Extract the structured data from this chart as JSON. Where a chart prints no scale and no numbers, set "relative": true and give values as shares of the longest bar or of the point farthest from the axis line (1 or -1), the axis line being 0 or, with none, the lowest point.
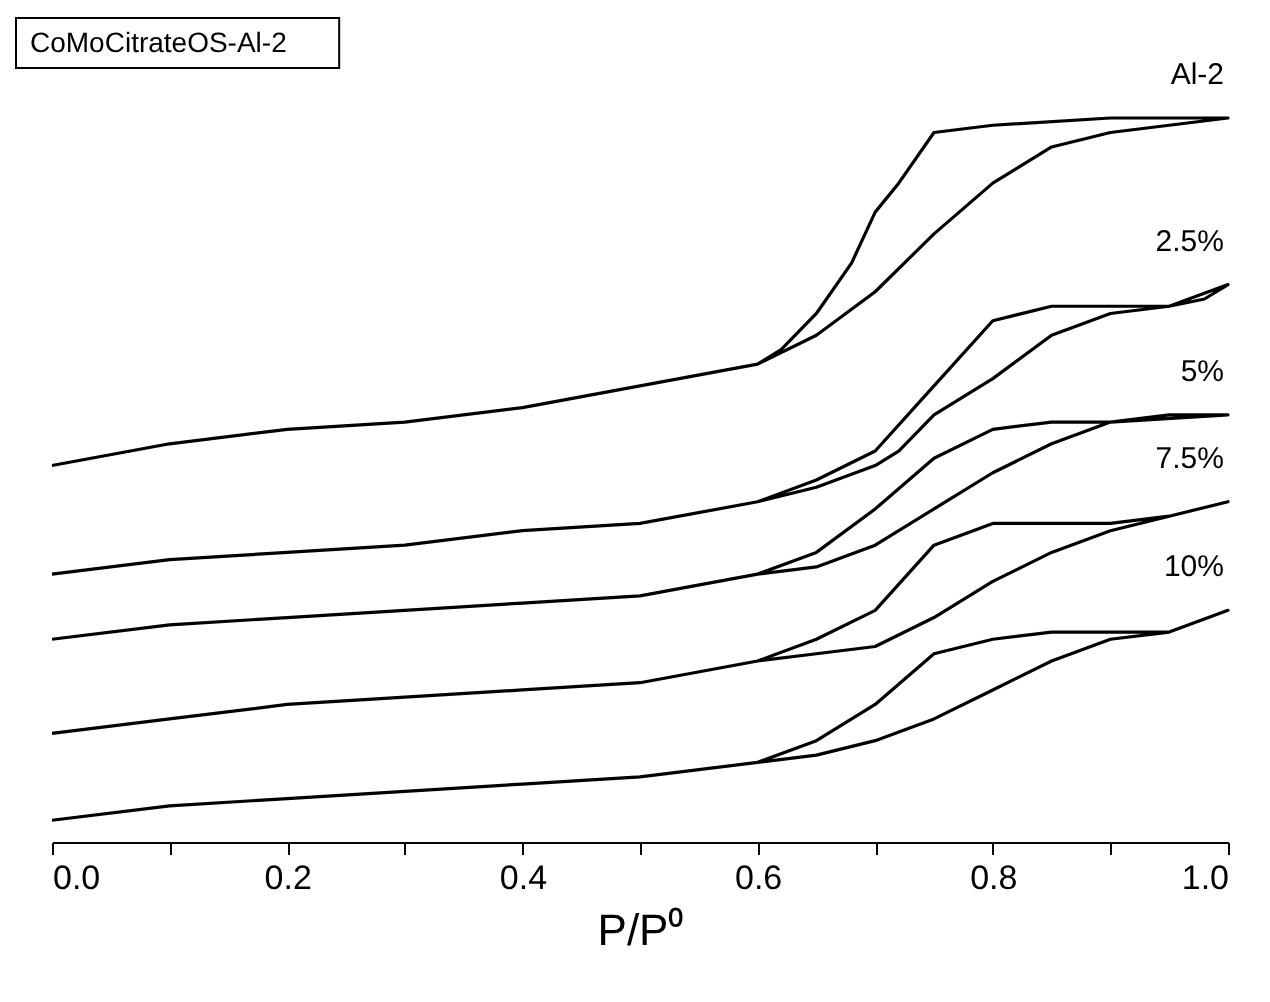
{
  "chart_data": {
    "type": "line",
    "title": "CoMoCitrateOS-Al-2",
    "xlabel": "P/P⁰",
    "relative": true,
    "legend": false,
    "grid": false,
    "xlim": [
      0,
      1
    ],
    "xticks": [
      {
        "value": 0,
        "label": "0.0"
      },
      {
        "value": 0.1,
        "label": null
      },
      {
        "value": 0.2,
        "label": "0.2"
      },
      {
        "value": 0.3,
        "label": null
      },
      {
        "value": 0.4,
        "label": "0.4"
      },
      {
        "value": 0.5,
        "label": null
      },
      {
        "value": 0.6,
        "label": "0.6"
      },
      {
        "value": 0.7,
        "label": null
      },
      {
        "value": 0.8,
        "label": "0.8"
      },
      {
        "value": 0.9,
        "label": null
      },
      {
        "value": 1,
        "label": "1.0"
      }
    ],
    "series": [
      {
        "name": "Al-2",
        "color": "#000000",
        "x": [
          0,
          0.1,
          0.2,
          0.3,
          0.4,
          0.5,
          0.6,
          0.65,
          0.7,
          0.75,
          0.8,
          0.85,
          0.9,
          0.95,
          1,
          0.9,
          0.8,
          0.75,
          0.72,
          0.7,
          0.68,
          0.65,
          0.62,
          0.6
        ],
        "values": [
          0.52,
          0.55,
          0.57,
          0.58,
          0.6,
          0.63,
          0.66,
          0.7,
          0.76,
          0.84,
          0.91,
          0.96,
          0.98,
          0.99,
          1,
          1,
          0.99,
          0.98,
          0.91,
          0.87,
          0.8,
          0.73,
          0.68,
          0.66
        ]
      },
      {
        "name": "2.5%",
        "color": "#000000",
        "x": [
          0,
          0.1,
          0.2,
          0.3,
          0.4,
          0.5,
          0.6,
          0.65,
          0.7,
          0.75,
          0.8,
          0.85,
          0.9,
          0.95,
          0.98,
          1,
          0.95,
          0.9,
          0.85,
          0.8,
          0.75,
          0.72,
          0.7,
          0.65,
          0.6
        ],
        "values": [
          0.37,
          0.39,
          0.4,
          0.41,
          0.43,
          0.44,
          0.47,
          0.5,
          0.54,
          0.63,
          0.72,
          0.74,
          0.74,
          0.74,
          0.75,
          0.77,
          0.74,
          0.73,
          0.7,
          0.64,
          0.59,
          0.54,
          0.52,
          0.49,
          0.47
        ]
      },
      {
        "name": "5%",
        "color": "#000000",
        "x": [
          0,
          0.1,
          0.2,
          0.3,
          0.4,
          0.5,
          0.6,
          0.65,
          0.7,
          0.75,
          0.8,
          0.85,
          0.9,
          1,
          0.95,
          0.9,
          0.85,
          0.8,
          0.75,
          0.7,
          0.65,
          0.6
        ],
        "values": [
          0.28,
          0.3,
          0.31,
          0.32,
          0.33,
          0.34,
          0.37,
          0.4,
          0.46,
          0.53,
          0.57,
          0.58,
          0.58,
          0.59,
          0.59,
          0.58,
          0.55,
          0.51,
          0.46,
          0.41,
          0.38,
          0.37
        ]
      },
      {
        "name": "7.5%",
        "color": "#000000",
        "x": [
          0,
          0.1,
          0.2,
          0.3,
          0.4,
          0.5,
          0.6,
          0.65,
          0.7,
          0.75,
          0.8,
          0.85,
          0.9,
          0.95,
          1,
          0.95,
          0.9,
          0.85,
          0.8,
          0.75,
          0.7,
          0.65,
          0.6
        ],
        "values": [
          0.15,
          0.17,
          0.19,
          0.2,
          0.21,
          0.22,
          0.25,
          0.28,
          0.32,
          0.41,
          0.44,
          0.44,
          0.44,
          0.45,
          0.47,
          0.45,
          0.43,
          0.4,
          0.36,
          0.31,
          0.27,
          0.26,
          0.25
        ]
      },
      {
        "name": "10%",
        "color": "#000000",
        "x": [
          0,
          0.1,
          0.2,
          0.3,
          0.4,
          0.5,
          0.6,
          0.65,
          0.7,
          0.75,
          0.8,
          0.85,
          0.9,
          0.95,
          1,
          0.95,
          0.9,
          0.85,
          0.8,
          0.75,
          0.7,
          0.65,
          0.6
        ],
        "values": [
          0.03,
          0.05,
          0.06,
          0.07,
          0.08,
          0.09,
          0.11,
          0.14,
          0.19,
          0.26,
          0.28,
          0.29,
          0.29,
          0.29,
          0.32,
          0.29,
          0.28,
          0.25,
          0.21,
          0.17,
          0.14,
          0.12,
          0.11
        ]
      }
    ]
  }
}
